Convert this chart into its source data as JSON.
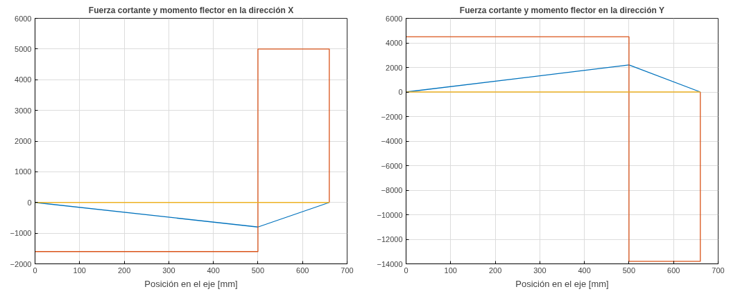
{
  "chart_data": [
    {
      "type": "line",
      "title": "Fuerza cortante y momento flector en la dirección X",
      "xlabel": "Posición en el eje [mm]",
      "xlim": [
        0,
        700
      ],
      "xticks": [
        0,
        100,
        200,
        300,
        400,
        500,
        600,
        700
      ],
      "ylim": [
        -2000,
        6000
      ],
      "yticks": [
        -2000,
        -1000,
        0,
        1000,
        2000,
        3000,
        4000,
        5000,
        6000
      ],
      "grid": true,
      "line_style": "solid",
      "marker": "none",
      "series": [
        {
          "color": "#0072bd",
          "x": [
            0,
            500,
            660
          ],
          "values": [
            0,
            -800,
            0
          ]
        },
        {
          "color": "#d95319",
          "x": [
            0,
            500,
            500,
            660,
            660
          ],
          "values": [
            -1600,
            -1600,
            5000,
            5000,
            0
          ]
        },
        {
          "color": "#edb120",
          "x": [
            0,
            660
          ],
          "values": [
            0,
            0
          ]
        }
      ]
    },
    {
      "type": "line",
      "title": "Fuerza cortante y momento flector en la dirección Y",
      "xlabel": "Posición en el eje [mm]",
      "xlim": [
        0,
        700
      ],
      "xticks": [
        0,
        100,
        200,
        300,
        400,
        500,
        600,
        700
      ],
      "ylim": [
        -14000,
        6000
      ],
      "yticks": [
        -14000,
        -12000,
        -10000,
        -8000,
        -6000,
        -4000,
        -2000,
        0,
        2000,
        4000,
        6000
      ],
      "grid": true,
      "line_style": "solid",
      "marker": "none",
      "series": [
        {
          "color": "#0072bd",
          "x": [
            0,
            500,
            660
          ],
          "values": [
            0,
            2200,
            0
          ]
        },
        {
          "color": "#d95319",
          "x": [
            0,
            500,
            500,
            660,
            660
          ],
          "values": [
            4500,
            4500,
            -13800,
            -13800,
            0
          ]
        },
        {
          "color": "#edb120",
          "x": [
            0,
            660
          ],
          "values": [
            0,
            0
          ]
        }
      ]
    }
  ]
}
